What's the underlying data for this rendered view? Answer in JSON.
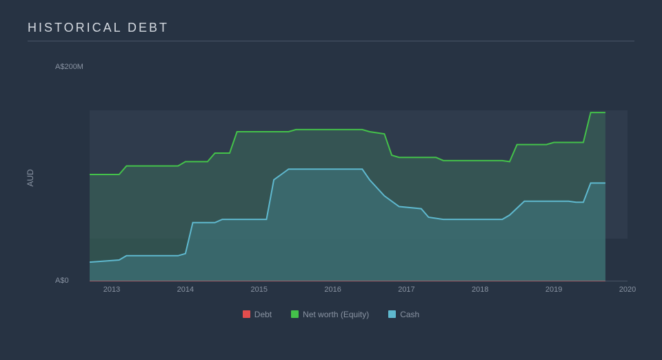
{
  "chart": {
    "type": "area",
    "title": "HISTORICAL DEBT",
    "title_fontsize": 18,
    "title_color": "#d4d9e0",
    "title_letter_spacing": 3,
    "background_color": "#273343",
    "plot_background_fill": "#2f3b4c",
    "plot_background_band": {
      "from": 40,
      "to": 160
    },
    "divider_color": "#4a5568",
    "axis_text_color": "#8a94a3",
    "axis_fontsize": 11,
    "y_axis": {
      "label": "AUD",
      "min": 0,
      "max": 200,
      "ticks": [
        {
          "v": 0,
          "label": "A$0"
        },
        {
          "v": 200,
          "label": "A$200M"
        }
      ]
    },
    "x_axis": {
      "min": 2012.7,
      "max": 2020,
      "ticks": [
        2013,
        2014,
        2015,
        2016,
        2017,
        2018,
        2019,
        2020
      ]
    },
    "series": [
      {
        "name": "Net worth (Equity)",
        "stroke": "#44c24a",
        "fill": "#3b6a59",
        "fill_opacity": 0.55,
        "stroke_width": 2,
        "points": [
          [
            2012.7,
            100
          ],
          [
            2013.1,
            100
          ],
          [
            2013.2,
            108
          ],
          [
            2013.9,
            108
          ],
          [
            2014.0,
            112
          ],
          [
            2014.3,
            112
          ],
          [
            2014.4,
            120
          ],
          [
            2014.6,
            120
          ],
          [
            2014.7,
            140
          ],
          [
            2015.4,
            140
          ],
          [
            2015.5,
            142
          ],
          [
            2016.4,
            142
          ],
          [
            2016.5,
            140
          ],
          [
            2016.7,
            138
          ],
          [
            2016.8,
            118
          ],
          [
            2016.9,
            116
          ],
          [
            2017.4,
            116
          ],
          [
            2017.5,
            113
          ],
          [
            2018.3,
            113
          ],
          [
            2018.4,
            112
          ],
          [
            2018.5,
            128
          ],
          [
            2018.9,
            128
          ],
          [
            2019.0,
            130
          ],
          [
            2019.4,
            130
          ],
          [
            2019.5,
            158
          ],
          [
            2019.7,
            158
          ]
        ]
      },
      {
        "name": "Cash",
        "stroke": "#5fb9cf",
        "fill": "#3d7078",
        "fill_opacity": 0.7,
        "stroke_width": 2,
        "points": [
          [
            2012.7,
            18
          ],
          [
            2013.1,
            20
          ],
          [
            2013.2,
            24
          ],
          [
            2013.9,
            24
          ],
          [
            2014.0,
            26
          ],
          [
            2014.1,
            55
          ],
          [
            2014.4,
            55
          ],
          [
            2014.5,
            58
          ],
          [
            2015.1,
            58
          ],
          [
            2015.2,
            95
          ],
          [
            2015.3,
            100
          ],
          [
            2015.4,
            105
          ],
          [
            2016.4,
            105
          ],
          [
            2016.5,
            95
          ],
          [
            2016.7,
            80
          ],
          [
            2016.9,
            70
          ],
          [
            2017.2,
            68
          ],
          [
            2017.3,
            60
          ],
          [
            2017.5,
            58
          ],
          [
            2018.3,
            58
          ],
          [
            2018.4,
            62
          ],
          [
            2018.6,
            75
          ],
          [
            2019.2,
            75
          ],
          [
            2019.3,
            74
          ],
          [
            2019.4,
            74
          ],
          [
            2019.5,
            92
          ],
          [
            2019.7,
            92
          ]
        ]
      },
      {
        "name": "Debt",
        "stroke": "#e34d4d",
        "fill": "#e34d4d",
        "fill_opacity": 0.0,
        "stroke_width": 2,
        "points": [
          [
            2012.7,
            0
          ],
          [
            2019.7,
            0
          ]
        ]
      }
    ],
    "legend": {
      "position": "bottom-center",
      "items": [
        {
          "label": "Debt",
          "color": "#e34d4d"
        },
        {
          "label": "Net worth (Equity)",
          "color": "#44c24a"
        },
        {
          "label": "Cash",
          "color": "#5fb9cf"
        }
      ]
    },
    "baseline_color": "#6b7688"
  }
}
